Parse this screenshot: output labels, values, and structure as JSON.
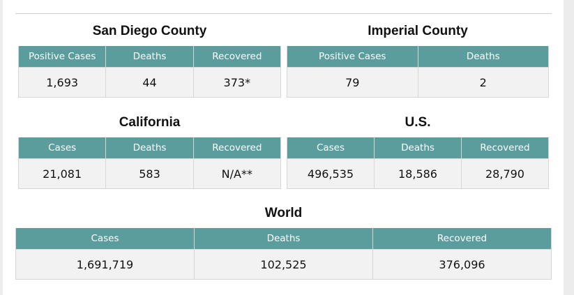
{
  "colors": {
    "header_bg": "#5b9c9d",
    "cell_bg": "#f2f2f2",
    "page_bg": "#ffffff"
  },
  "sections": {
    "san_diego": {
      "title": "San Diego County",
      "headers": [
        "Positive Cases",
        "Deaths",
        "Recovered"
      ],
      "values": [
        "1,693",
        "44",
        "373*"
      ]
    },
    "imperial": {
      "title": "Imperial County",
      "headers": [
        "Positive Cases",
        "Deaths"
      ],
      "values": [
        "79",
        "2"
      ]
    },
    "california": {
      "title": "California",
      "headers": [
        "Cases",
        "Deaths",
        "Recovered"
      ],
      "values": [
        "21,081",
        "583",
        "N/A**"
      ]
    },
    "us": {
      "title": "U.S.",
      "headers": [
        "Cases",
        "Deaths",
        "Recovered"
      ],
      "values": [
        "496,535",
        "18,586",
        "28,790"
      ]
    },
    "world": {
      "title": "World",
      "headers": [
        "Cases",
        "Deaths",
        "Recovered"
      ],
      "values": [
        "1,691,719",
        "102,525",
        "376,096"
      ]
    }
  }
}
